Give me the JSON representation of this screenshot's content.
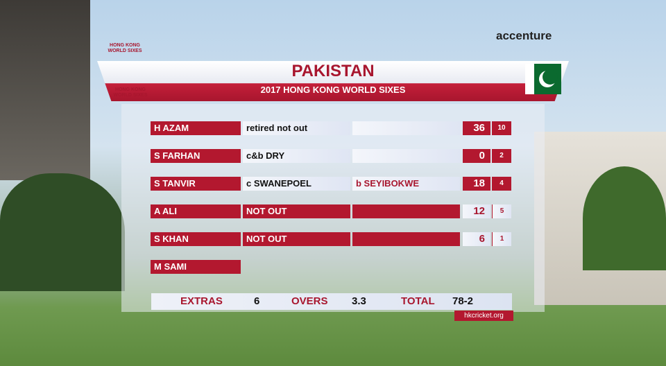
{
  "broadcast": {
    "logo_text": "HONG KONG WORLD SIXES",
    "sponsor": "accenture"
  },
  "header": {
    "title": "PAKISTAN",
    "subtitle": "2017 HONG KONG WORLD SIXES",
    "logo_text": "HONG KONG WORLD SIXES"
  },
  "table": {
    "rows": [
      {
        "name": "H AZAM",
        "dismissal": "retired not out",
        "runs": 36,
        "balls": 10
      },
      {
        "name": "S FARHAN",
        "dismissal": "c&b DRY",
        "runs": 0,
        "balls": 2
      },
      {
        "name": "S TANVIR",
        "dismissal": "c SWANEPOEL",
        "bowler": "b SEYIBOKWE",
        "runs": 18,
        "balls": 4
      },
      {
        "name": "A ALI",
        "dismissal": "NOT OUT",
        "not_out": true,
        "runs": 12,
        "balls": 5
      },
      {
        "name": "S KHAN",
        "dismissal": "NOT OUT",
        "not_out": true,
        "runs": 6,
        "balls": 1
      },
      {
        "name": "M SAMI"
      }
    ]
  },
  "footer": {
    "extras_label": "EXTRAS",
    "extras": 6,
    "overs_label": "OVERS",
    "overs": 3.3,
    "total_label": "TOTAL",
    "total": "78-2",
    "url": "hkcricket.org"
  }
}
